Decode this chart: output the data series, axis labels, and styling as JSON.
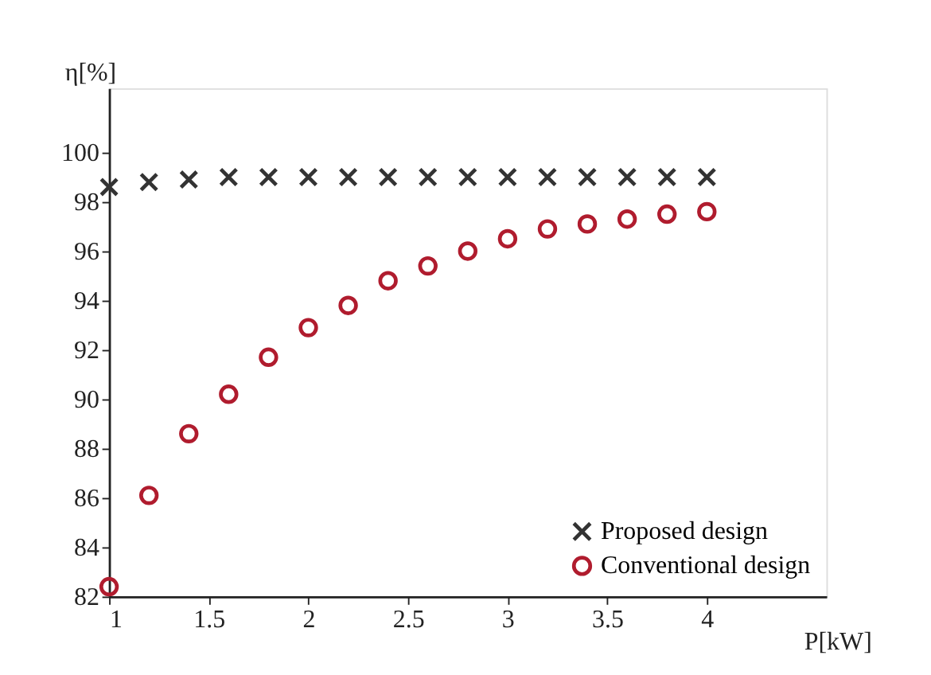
{
  "chart_data": {
    "type": "scatter",
    "xlabel": "P[kW]",
    "ylabel": "η[%]",
    "x": [
      1,
      1.2,
      1.4,
      1.6,
      1.8,
      2,
      2.2,
      2.4,
      2.6,
      2.8,
      3,
      3.2,
      3.4,
      3.6,
      3.8,
      4
    ],
    "series": [
      {
        "name": "Proposed design",
        "color": "#333333",
        "marker": "cross",
        "values": [
          98.6,
          98.8,
          98.9,
          99.0,
          99.0,
          99.0,
          99.0,
          99.0,
          99.0,
          99.0,
          99.0,
          99.0,
          99.0,
          99.0,
          99.0,
          99.0
        ]
      },
      {
        "name": "Conventional design",
        "color": "#b01c2e",
        "marker": "circle",
        "values": [
          82.4,
          86.1,
          88.6,
          90.2,
          91.7,
          92.9,
          93.8,
          94.8,
          95.4,
          96.0,
          96.5,
          96.9,
          97.1,
          97.3,
          97.5,
          97.6
        ]
      }
    ],
    "xlim": [
      1,
      4.6
    ],
    "ylim": [
      82,
      102.6
    ],
    "xticks": [
      1,
      1.5,
      2,
      2.5,
      3,
      3.5,
      4
    ],
    "yticks": [
      82,
      84,
      86,
      88,
      90,
      92,
      94,
      96,
      98,
      100
    ],
    "grid": false,
    "legend": "bottom right"
  }
}
